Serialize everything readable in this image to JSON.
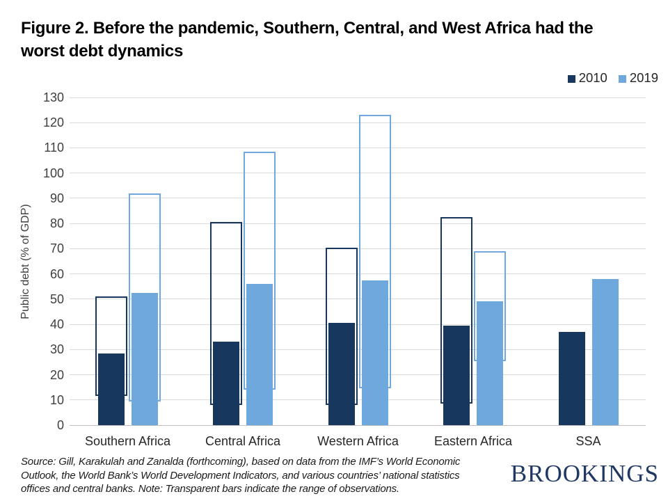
{
  "title_lines": [
    "Figure 2. Before the pandemic, Southern, Central, and West Africa had the",
    "worst debt dynamics"
  ],
  "footer_lines": [
    "Source: Gill, Karakulah and Zanalda (forthcoming), based on data from the IMF’s World Economic",
    "Outlook, the World Bank’s World Development Indicators, and various countries’ national statistics",
    "offices and central banks. Note: Transparent bars indicate the range of observations."
  ],
  "branding": {
    "wordmark": "BROOKINGS",
    "color": "#1F3864"
  },
  "colors": {
    "gridline": "#D9D9D9",
    "axis_line": "#BFBFBF",
    "tick_text": "#3F3F3F"
  },
  "chart_data": {
    "type": "bar",
    "title": "Figure 2. Before the pandemic, Southern, Central, and West Africa had the worst debt dynamics",
    "ylabel": "Public debt (% of GDP)",
    "ylim": [
      0,
      130
    ],
    "ytick_step": 10,
    "grid": true,
    "legend_position": "top-right",
    "categories": [
      "Southern Africa",
      "Central Africa",
      "Western Africa",
      "Eastern Africa",
      "SSA"
    ],
    "series": [
      {
        "name": "2010",
        "color": "#17375E",
        "values": [
          28.5,
          33,
          40.5,
          39.5,
          37
        ],
        "range_min": [
          11.5,
          8,
          8,
          8.5,
          null
        ],
        "range_max": [
          51,
          80.5,
          70.5,
          82.5,
          null
        ]
      },
      {
        "name": "2019",
        "color": "#6FA8DC",
        "values": [
          52.5,
          56,
          57.5,
          49,
          58
        ],
        "range_min": [
          9.5,
          14,
          14.5,
          25.5,
          null
        ],
        "range_max": [
          92,
          108.5,
          123,
          69,
          null
        ]
      }
    ],
    "note": "Transparent bars indicate the range of observations"
  }
}
